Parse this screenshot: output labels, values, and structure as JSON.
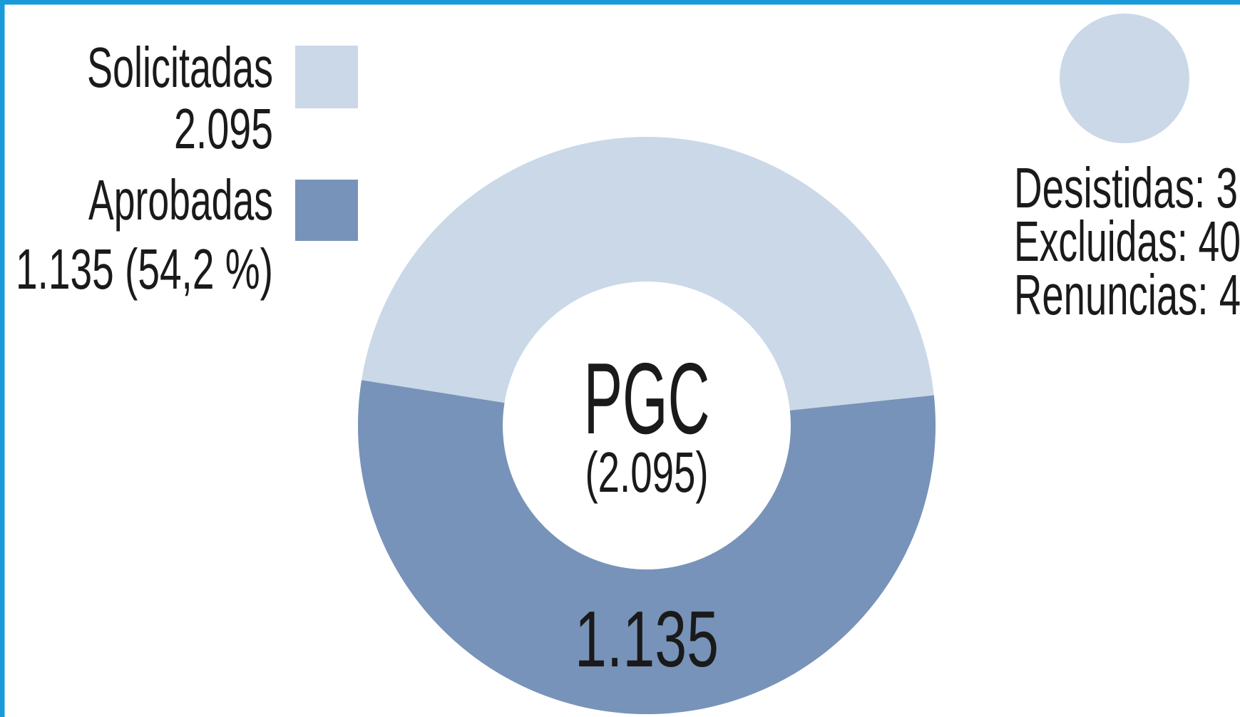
{
  "chart_data": {
    "type": "donut",
    "title": "PGC",
    "center_label": "(2.095)",
    "series": [
      {
        "name": "Solicitadas",
        "value": 2095,
        "value_label": "2.095",
        "color": "#cad8e8"
      },
      {
        "name": "Aprobadas",
        "value": 1135,
        "value_label": "1.135 (54,2 %)",
        "color": "#7893b9"
      }
    ],
    "arc_label": "1.135",
    "notes": [
      "Desistidas: 3",
      "Excluidas: 40",
      "Renuncias: 4"
    ],
    "notes_color": "#cad8e8",
    "border_color": "#1a9ad9"
  }
}
